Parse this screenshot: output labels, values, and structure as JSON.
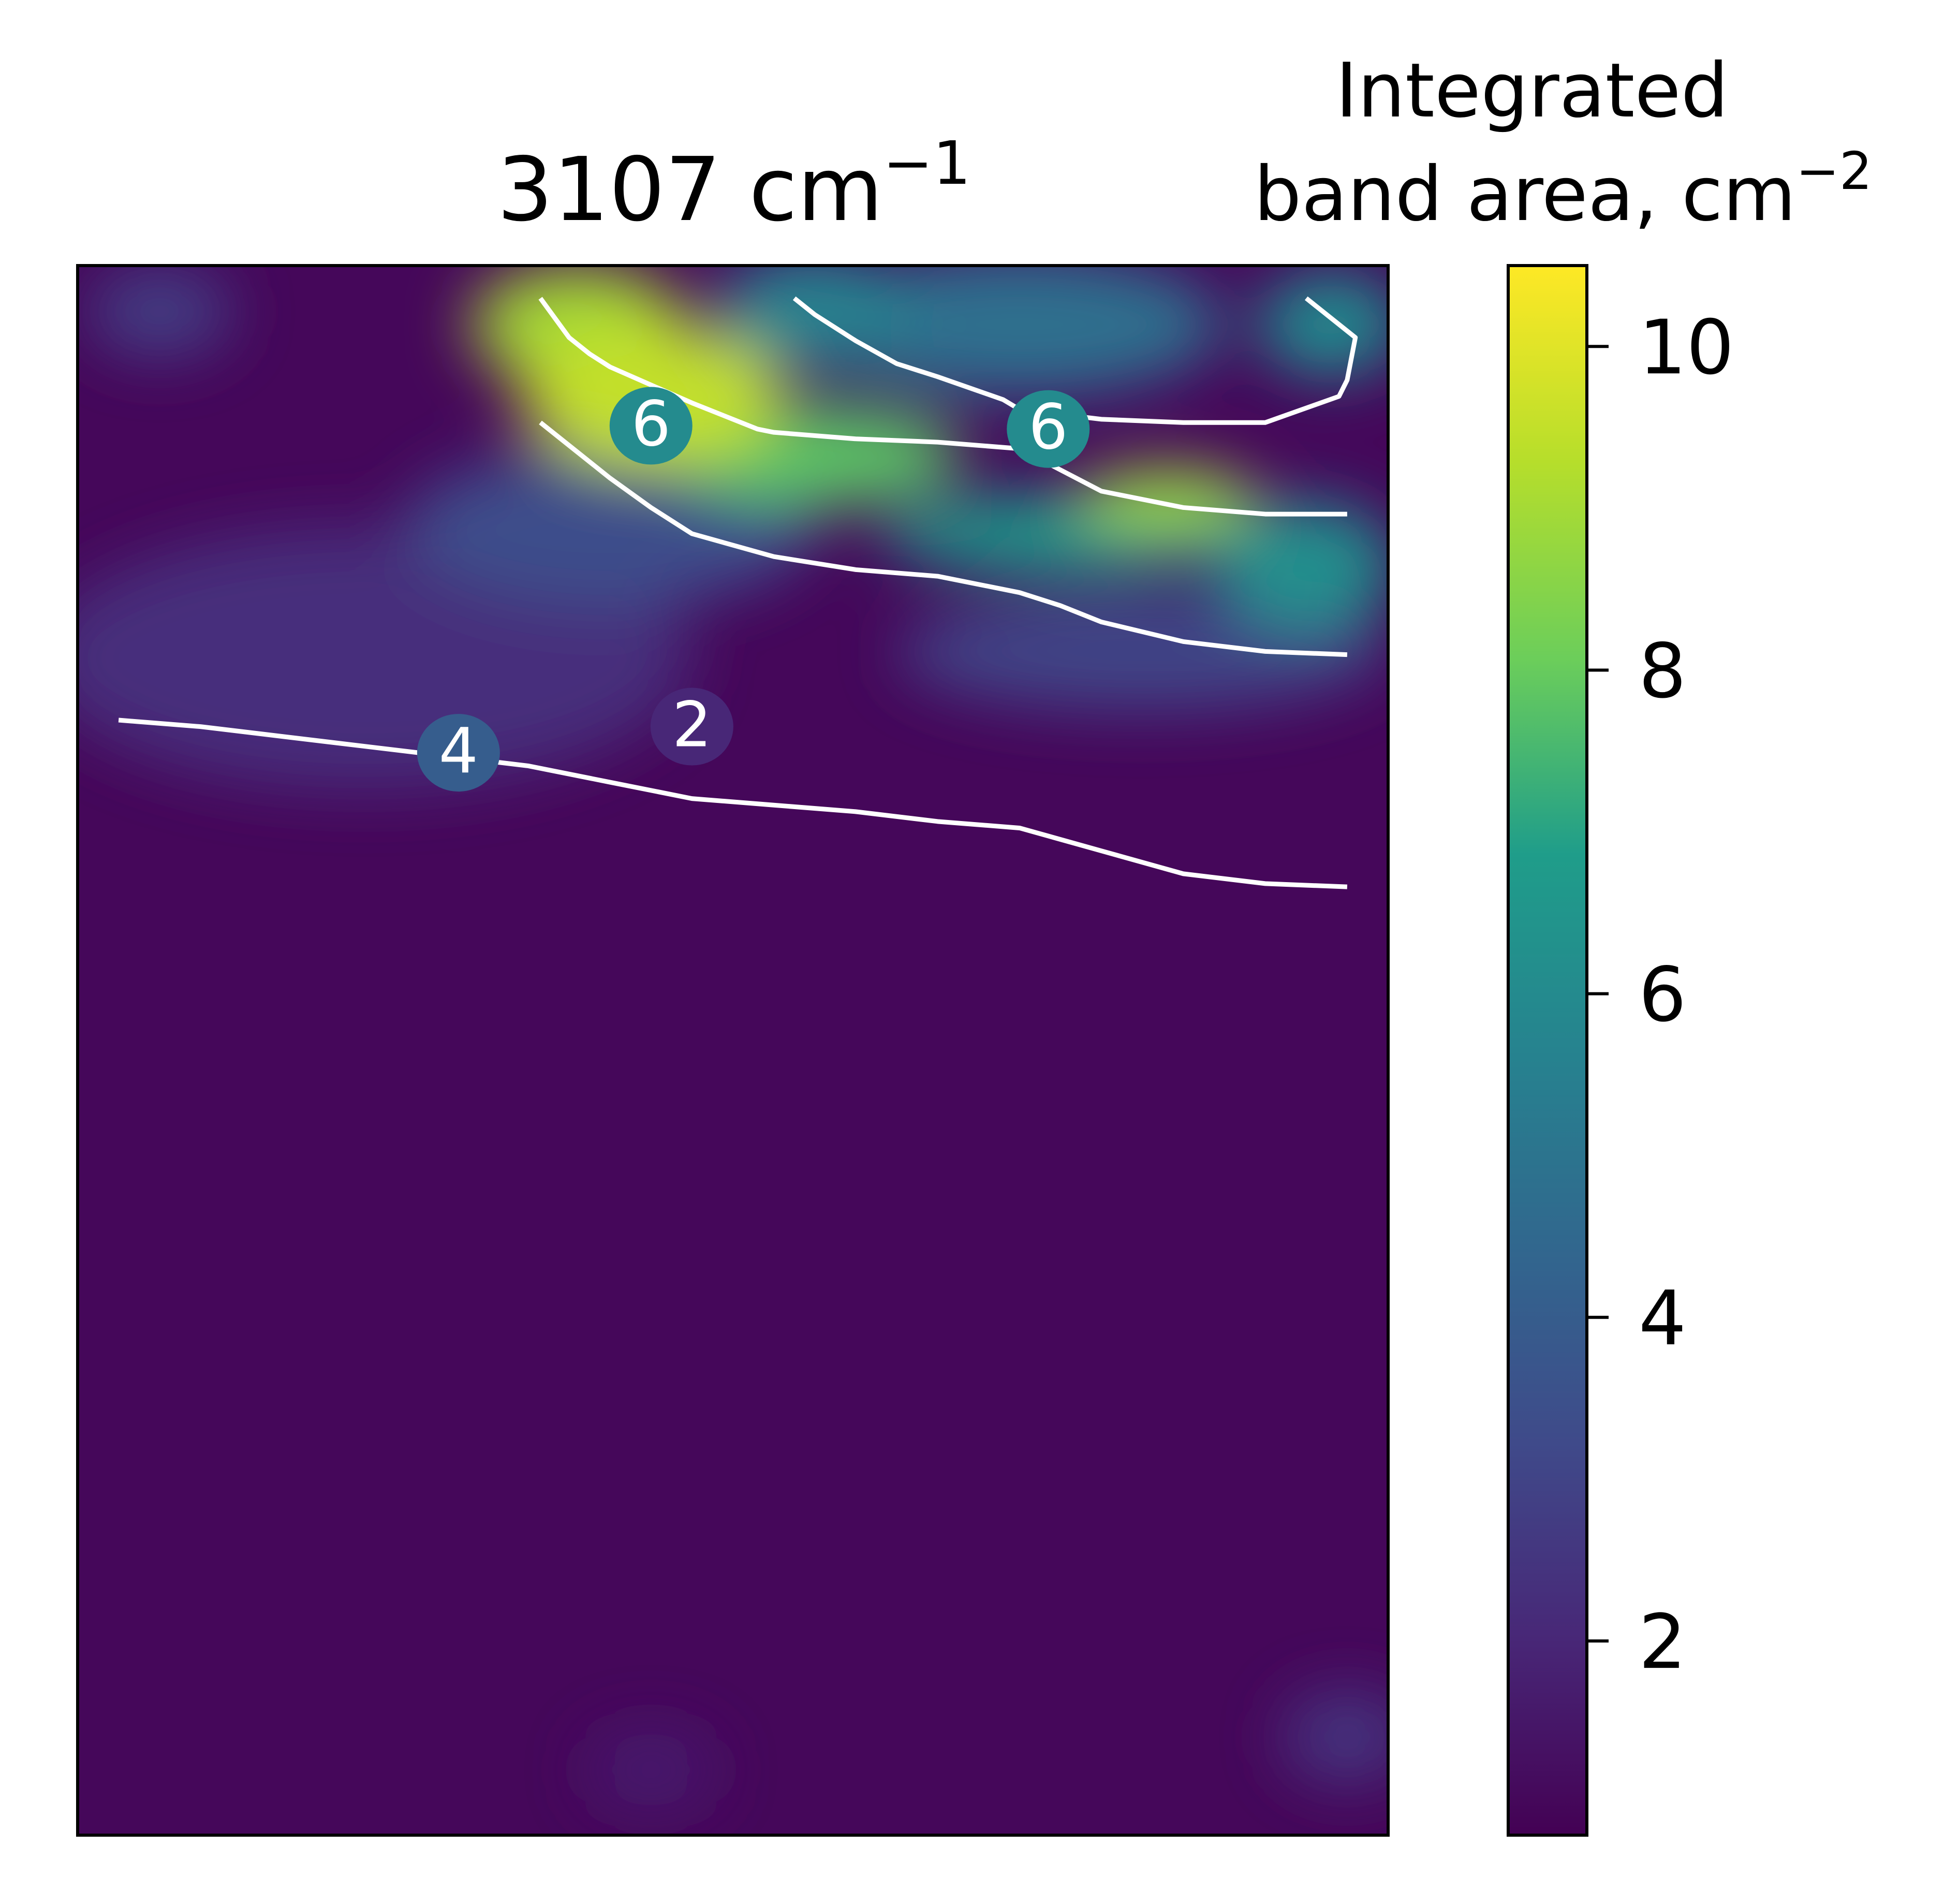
{
  "chart_data": {
    "type": "heatmap",
    "title": "3107 cm",
    "title_superscript": "−1",
    "colorbar": {
      "label_line1": "Integrated",
      "label_line2": "band area, cm",
      "label_superscript": "−2",
      "range": [
        0.8,
        10.5
      ],
      "ticks": [
        2,
        4,
        6,
        8,
        10
      ],
      "tick_labels": [
        "2",
        "4",
        "6",
        "8",
        "10"
      ],
      "colormap": "viridis"
    },
    "colormap_stops": [
      "#440154",
      "#482777",
      "#3f4a8a",
      "#31678e",
      "#26838f",
      "#1f9d8a",
      "#6cce5a",
      "#b6de2b",
      "#fee825"
    ],
    "contour_color": "#ffffff",
    "contours": [
      {
        "level": 2,
        "label": "2",
        "label_position": [
          7.0,
          17.15
        ],
        "points": [
          [
            0.0,
            17.55
          ],
          [
            1.0,
            17.45
          ],
          [
            2.0,
            17.3
          ],
          [
            3.0,
            17.15
          ],
          [
            4.0,
            17.0
          ],
          [
            5.0,
            16.85
          ],
          [
            6.0,
            16.6
          ],
          [
            7.0,
            16.35
          ],
          [
            8.0,
            16.25
          ],
          [
            9.0,
            16.15
          ],
          [
            10.0,
            16.0
          ],
          [
            11.0,
            15.9
          ],
          [
            12.0,
            15.55
          ],
          [
            13.0,
            15.2
          ],
          [
            14.0,
            15.05
          ],
          [
            15.0,
            15.0
          ]
        ]
      },
      {
        "level": 4,
        "label": "4",
        "label_position": [
          4.15,
          16.75
        ],
        "points": [
          [
            5.15,
            22.1
          ],
          [
            5.6,
            21.65
          ],
          [
            6.0,
            21.25
          ],
          [
            6.5,
            20.8
          ],
          [
            7.0,
            20.4
          ],
          [
            8.0,
            20.05
          ],
          [
            8.5,
            19.95
          ],
          [
            9.0,
            19.85
          ],
          [
            10.0,
            19.75
          ],
          [
            11.0,
            19.5
          ],
          [
            11.5,
            19.3
          ],
          [
            12.0,
            19.05
          ],
          [
            13.0,
            18.75
          ],
          [
            14.0,
            18.6
          ],
          [
            15.0,
            18.55
          ]
        ]
      },
      {
        "level": 6,
        "label": "6",
        "label_position": [
          6.5,
          21.75
        ],
        "points": [
          [
            5.15,
            24.0
          ],
          [
            5.5,
            23.4
          ],
          [
            5.75,
            23.15
          ],
          [
            6.0,
            22.95
          ],
          [
            7.0,
            22.4
          ],
          [
            7.8,
            22.0
          ],
          [
            8.0,
            21.95
          ],
          [
            9.0,
            21.85
          ],
          [
            10.0,
            21.8
          ],
          [
            11.0,
            21.7
          ],
          [
            12.0,
            21.05
          ],
          [
            13.0,
            20.8
          ],
          [
            14.0,
            20.7
          ],
          [
            15.0,
            20.7
          ]
        ]
      },
      {
        "level": 6,
        "label": "6",
        "label_position": [
          11.35,
          21.7
        ],
        "points": [
          [
            8.25,
            24.0
          ],
          [
            8.5,
            23.75
          ],
          [
            9.0,
            23.35
          ],
          [
            9.5,
            23.0
          ],
          [
            10.0,
            22.8
          ],
          [
            10.8,
            22.45
          ],
          [
            11.0,
            22.3
          ],
          [
            12.0,
            22.15
          ],
          [
            13.0,
            22.1
          ],
          [
            14.0,
            22.1
          ],
          [
            14.9,
            22.5
          ],
          [
            15.0,
            22.75
          ],
          [
            15.1,
            23.4
          ],
          [
            14.5,
            24.0
          ]
        ]
      }
    ],
    "field_shading": [
      {
        "x": 6.5,
        "y": 22.5,
        "value": 9.5,
        "rx": 1.6,
        "ry": 1.1
      },
      {
        "x": 5.6,
        "y": 23.6,
        "value": 9.0,
        "rx": 1.3,
        "ry": 0.9
      },
      {
        "x": 8.5,
        "y": 21.6,
        "value": 7.8,
        "rx": 1.8,
        "ry": 0.8
      },
      {
        "x": 12.8,
        "y": 20.9,
        "value": 8.8,
        "rx": 1.1,
        "ry": 0.5
      },
      {
        "x": 11.5,
        "y": 20.4,
        "value": 6.8,
        "rx": 2.2,
        "ry": 0.6
      },
      {
        "x": 14.5,
        "y": 19.9,
        "value": 6.2,
        "rx": 1.1,
        "ry": 1.0
      },
      {
        "x": 11.0,
        "y": 23.6,
        "value": 4.8,
        "rx": 2.5,
        "ry": 1.1
      },
      {
        "x": 14.8,
        "y": 23.6,
        "value": 6.0,
        "rx": 0.9,
        "ry": 0.8
      },
      {
        "x": 8.5,
        "y": 23.8,
        "value": 5.6,
        "rx": 1.2,
        "ry": 0.9
      },
      {
        "x": 6.0,
        "y": 20.5,
        "value": 3.4,
        "rx": 2.5,
        "ry": 1.2
      },
      {
        "x": 3.0,
        "y": 18.5,
        "value": 2.3,
        "rx": 4.0,
        "ry": 2.0
      },
      {
        "x": 0.5,
        "y": 23.8,
        "value": 2.8,
        "rx": 0.9,
        "ry": 0.7
      },
      {
        "x": 12.5,
        "y": 18.6,
        "value": 3.0,
        "rx": 3.0,
        "ry": 0.9
      },
      {
        "x": 15.0,
        "y": 2.0,
        "value": 2.5,
        "rx": 0.8,
        "ry": 0.7
      },
      {
        "x": 6.5,
        "y": 1.5,
        "value": 1.7,
        "rx": 0.8,
        "ry": 0.6
      }
    ],
    "x_range": [
      -0.5,
      15.5
    ],
    "y_range": [
      0.5,
      24.5
    ],
    "background_value": 1.0,
    "grid": false,
    "legend": "none",
    "axes_ticks_visible": false
  }
}
